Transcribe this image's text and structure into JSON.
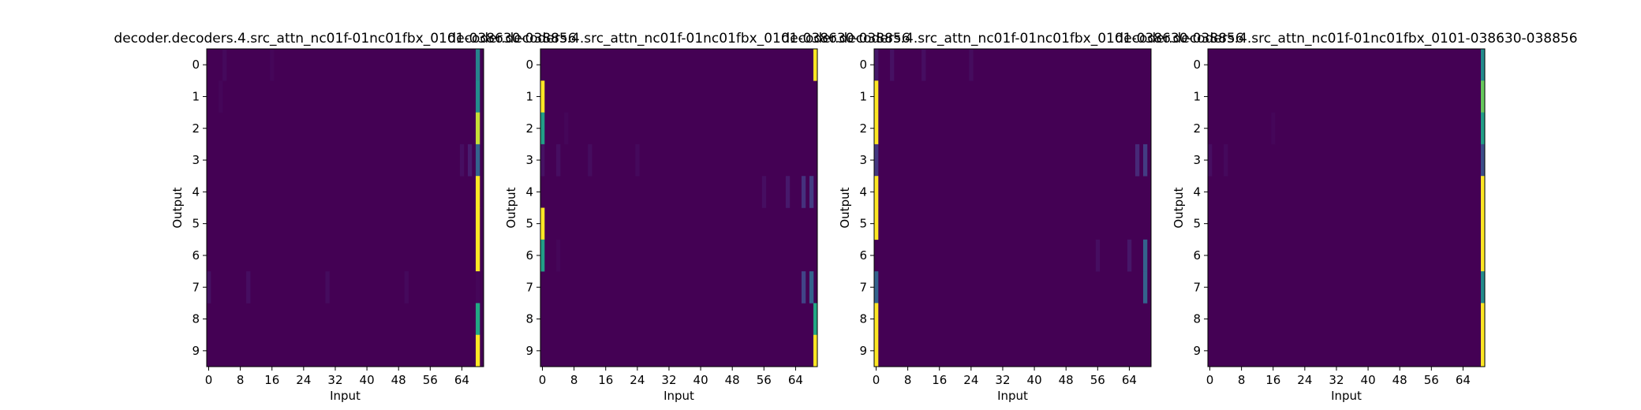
{
  "chart_data": [
    {
      "type": "heatmap",
      "title": "decoder.decoders.4.src_attn_nc01f-01nc01fbx_0101-038630-038856",
      "xlabel": "Input",
      "ylabel": "Output",
      "x_ticks": [
        "0",
        "8",
        "16",
        "24",
        "32",
        "40",
        "48",
        "56",
        "64"
      ],
      "y_ticks": [
        "0",
        "1",
        "2",
        "3",
        "4",
        "5",
        "6",
        "7",
        "8",
        "9"
      ],
      "n_inputs": 70,
      "n_outputs": 10,
      "colormap": "viridis",
      "vmin": 0,
      "vmax": 1,
      "background": 0.0,
      "cells": [
        [
          0,
          68,
          0.55
        ],
        [
          1,
          68,
          0.6
        ],
        [
          2,
          68,
          0.95
        ],
        [
          3,
          68,
          0.4
        ],
        [
          4,
          68,
          1
        ],
        [
          5,
          68,
          1
        ],
        [
          6,
          68,
          1
        ],
        [
          7,
          68,
          0.02
        ],
        [
          8,
          68,
          0.75
        ],
        [
          9,
          68,
          1
        ],
        [
          7,
          0,
          0.06
        ],
        [
          7,
          10,
          0.05
        ],
        [
          7,
          30,
          0.04
        ],
        [
          7,
          50,
          0.03
        ],
        [
          0,
          4,
          0.03
        ],
        [
          0,
          16,
          0.02
        ],
        [
          1,
          3,
          0.02
        ],
        [
          3,
          64,
          0.05
        ],
        [
          3,
          66,
          0.1
        ]
      ]
    },
    {
      "type": "heatmap",
      "title": "decoder.decoders.4.src_attn_nc01f-01nc01fbx_0101-038630-038856",
      "xlabel": "Input",
      "ylabel": "Output",
      "x_ticks": [
        "0",
        "8",
        "16",
        "24",
        "32",
        "40",
        "48",
        "56",
        "64"
      ],
      "y_ticks": [
        "0",
        "1",
        "2",
        "3",
        "4",
        "5",
        "6",
        "7",
        "8",
        "9"
      ],
      "n_inputs": 70,
      "n_outputs": 10,
      "colormap": "viridis",
      "vmin": 0,
      "vmax": 1,
      "background": 0.0,
      "cells": [
        [
          0,
          69,
          1
        ],
        [
          1,
          0,
          1
        ],
        [
          2,
          0,
          0.7
        ],
        [
          3,
          0,
          0.06
        ],
        [
          3,
          4,
          0.05
        ],
        [
          3,
          12,
          0.04
        ],
        [
          3,
          24,
          0.03
        ],
        [
          4,
          56,
          0.05
        ],
        [
          4,
          62,
          0.09
        ],
        [
          4,
          66,
          0.18
        ],
        [
          4,
          68,
          0.22
        ],
        [
          5,
          0,
          1
        ],
        [
          6,
          0,
          0.7
        ],
        [
          7,
          66,
          0.25
        ],
        [
          7,
          68,
          0.4
        ],
        [
          8,
          69,
          0.75
        ],
        [
          9,
          69,
          1
        ],
        [
          2,
          6,
          0.02
        ],
        [
          6,
          4,
          0.02
        ]
      ]
    },
    {
      "type": "heatmap",
      "title": "decoder.decoders.4.src_attn_nc01f-01nc01fbx_0101-038630-038856",
      "xlabel": "Input",
      "ylabel": "Output",
      "x_ticks": [
        "0",
        "8",
        "16",
        "24",
        "32",
        "40",
        "48",
        "56",
        "64"
      ],
      "y_ticks": [
        "0",
        "1",
        "2",
        "3",
        "4",
        "5",
        "6",
        "7",
        "8",
        "9"
      ],
      "n_inputs": 70,
      "n_outputs": 10,
      "colormap": "viridis",
      "vmin": 0,
      "vmax": 1,
      "background": 0.0,
      "cells": [
        [
          0,
          0,
          0.08
        ],
        [
          0,
          4,
          0.06
        ],
        [
          0,
          12,
          0.05
        ],
        [
          0,
          24,
          0.04
        ],
        [
          1,
          0,
          1
        ],
        [
          2,
          0,
          1
        ],
        [
          3,
          0,
          0.2
        ],
        [
          3,
          66,
          0.15
        ],
        [
          3,
          68,
          0.22
        ],
        [
          4,
          0,
          1
        ],
        [
          5,
          0,
          1
        ],
        [
          6,
          56,
          0.05
        ],
        [
          6,
          64,
          0.08
        ],
        [
          6,
          68,
          0.4
        ],
        [
          7,
          0,
          0.4
        ],
        [
          7,
          68,
          0.4
        ],
        [
          8,
          0,
          1
        ],
        [
          9,
          0,
          1
        ]
      ]
    },
    {
      "type": "heatmap",
      "title": "decoder.decoders.4.src_attn_nc01f-01nc01fbx_0101-038630-038856",
      "xlabel": "Input",
      "ylabel": "Output",
      "x_ticks": [
        "0",
        "8",
        "16",
        "24",
        "32",
        "40",
        "48",
        "56",
        "64"
      ],
      "y_ticks": [
        "0",
        "1",
        "2",
        "3",
        "4",
        "5",
        "6",
        "7",
        "8",
        "9"
      ],
      "n_inputs": 70,
      "n_outputs": 10,
      "colormap": "viridis",
      "vmin": 0,
      "vmax": 1,
      "background": 0.0,
      "cells": [
        [
          0,
          69,
          0.6
        ],
        [
          1,
          69,
          0.85
        ],
        [
          2,
          69,
          0.7
        ],
        [
          3,
          69,
          0.3
        ],
        [
          3,
          0,
          0.05
        ],
        [
          3,
          4,
          0.03
        ],
        [
          4,
          69,
          1
        ],
        [
          5,
          69,
          1
        ],
        [
          6,
          69,
          1
        ],
        [
          7,
          69,
          0.6
        ],
        [
          8,
          69,
          1
        ],
        [
          9,
          69,
          1
        ],
        [
          2,
          16,
          0.02
        ]
      ]
    }
  ]
}
